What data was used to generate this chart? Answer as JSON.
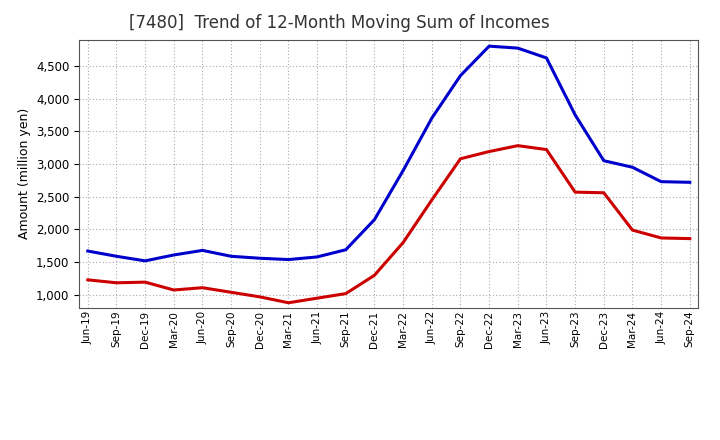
{
  "title": "[7480]  Trend of 12-Month Moving Sum of Incomes",
  "ylabel": "Amount (million yen)",
  "background_color": "#ffffff",
  "plot_bg_color": "#ffffff",
  "grid_color": "#aaaaaa",
  "x_labels": [
    "Jun-19",
    "Sep-19",
    "Dec-19",
    "Mar-20",
    "Jun-20",
    "Sep-20",
    "Dec-20",
    "Mar-21",
    "Jun-21",
    "Sep-21",
    "Dec-21",
    "Mar-22",
    "Jun-22",
    "Sep-22",
    "Dec-22",
    "Mar-23",
    "Jun-23",
    "Sep-23",
    "Dec-23",
    "Mar-24",
    "Jun-24",
    "Sep-24"
  ],
  "ordinary_income": [
    1670,
    1590,
    1520,
    1610,
    1680,
    1590,
    1560,
    1540,
    1580,
    1690,
    2150,
    2900,
    3700,
    4350,
    4800,
    4770,
    4620,
    3750,
    3050,
    2950,
    2730,
    2720
  ],
  "net_income": [
    1230,
    1185,
    1195,
    1075,
    1110,
    1040,
    970,
    880,
    950,
    1020,
    1300,
    1800,
    2450,
    3080,
    3190,
    3280,
    3220,
    2570,
    2560,
    1990,
    1870,
    1860
  ],
  "ordinary_color": "#0000cc",
  "net_color": "#cc0000",
  "ylim_min": 800,
  "ylim_max": 4900,
  "yticks": [
    1000,
    1500,
    2000,
    2500,
    3000,
    3500,
    4000,
    4500
  ],
  "line_width": 2.2,
  "title_fontsize": 12
}
